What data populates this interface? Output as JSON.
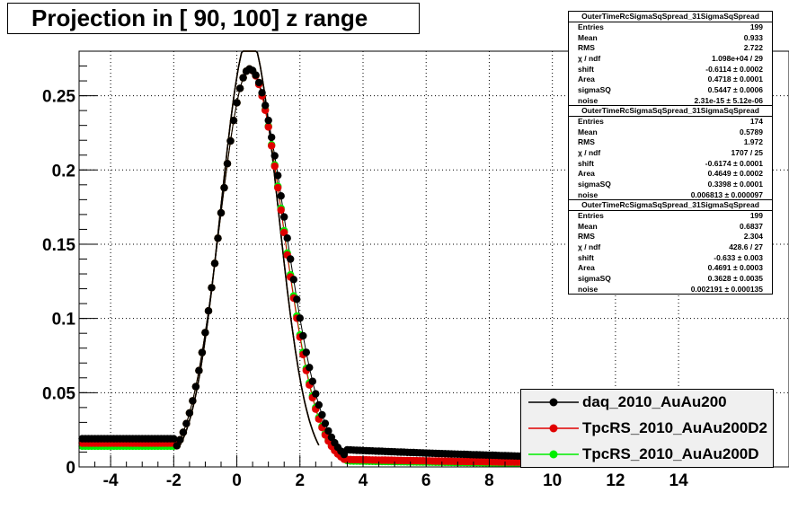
{
  "title": "Projection in [  90, 100] z range",
  "chart_data": {
    "type": "scatter",
    "xlim": [
      -5,
      17.5
    ],
    "ylim": [
      0,
      0.28
    ],
    "xticks": [
      "-4",
      "-2",
      "0",
      "2",
      "4",
      "6",
      "8",
      "10",
      "12",
      "14"
    ],
    "xtick_values": [
      -4,
      -2,
      0,
      2,
      4,
      6,
      8,
      10,
      12,
      14
    ],
    "yticks": [
      "0",
      "0.05",
      "0.1",
      "0.15",
      "0.2",
      "0.25"
    ],
    "ytick_values": [
      0,
      0.05,
      0.1,
      0.15,
      0.2,
      0.25
    ],
    "grid": true,
    "legend_position": "bottom-right",
    "series": [
      {
        "name": "daq_2010_AuAu200",
        "color": "#000000",
        "shift": -0.6114,
        "area": 0.4718,
        "sigmaSQ": 0.5447,
        "noise": 2.31e-15,
        "tail": 0.0115,
        "low": 0.019
      },
      {
        "name": "TpcRS_2010_AuAu200D2",
        "color": "#e00000",
        "shift": -0.6174,
        "area": 0.4649,
        "sigmaSQ": 0.3398,
        "noise": 0.006813,
        "tail": 0.005,
        "low": 0.016
      },
      {
        "name": "TpcRS_2010_AuAu200D",
        "color": "#00ee00",
        "shift": -0.633,
        "area": 0.4691,
        "sigmaSQ": 0.3628,
        "noise": 0.002191,
        "tail": 0.004,
        "low": 0.014
      }
    ]
  },
  "stats": [
    {
      "title": "OuterTimeRcSigmaSqSpread_31SigmaSqSpread",
      "rows": [
        [
          "Entries",
          "199"
        ],
        [
          "Mean",
          "0.933"
        ],
        [
          "RMS",
          "2.722"
        ],
        [
          "χ  / ndf",
          "1.098e+04 / 29"
        ],
        [
          "shift",
          "-0.6114 ± 0.0002"
        ],
        [
          "Area",
          "0.4718 ± 0.0001"
        ],
        [
          "sigmaSQ",
          "0.5447 ± 0.0006"
        ],
        [
          "noise",
          "2.31e-15 ± 5.12e-06"
        ]
      ]
    },
    {
      "title": "OuterTimeRcSigmaSqSpread_31SigmaSqSpread",
      "rows": [
        [
          "Entries",
          "174"
        ],
        [
          "Mean",
          "0.5789"
        ],
        [
          "RMS",
          "1.972"
        ],
        [
          "χ  / ndf",
          "1707 / 25"
        ],
        [
          "shift",
          "-0.6174 ± 0.0001"
        ],
        [
          "Area",
          "0.4649 ± 0.0002"
        ],
        [
          "sigmaSQ",
          "0.3398 ± 0.0001"
        ],
        [
          "noise",
          "0.006813 ± 0.000097"
        ]
      ]
    },
    {
      "title": "OuterTimeRcSigmaSqSpread_31SigmaSqSpread",
      "rows": [
        [
          "Entries",
          "199"
        ],
        [
          "Mean",
          "0.6837"
        ],
        [
          "RMS",
          "2.304"
        ],
        [
          "χ  / ndf",
          "428.6 / 27"
        ],
        [
          "shift",
          "-0.633 ± 0.003"
        ],
        [
          "Area",
          "0.4691 ± 0.0003"
        ],
        [
          "sigmaSQ",
          "0.3628 ± 0.0035"
        ],
        [
          "noise",
          "0.002191 ± 0.000135"
        ]
      ]
    }
  ],
  "legend": [
    {
      "label": "daq_2010_AuAu200",
      "color": "#000000"
    },
    {
      "label": "TpcRS_2010_AuAu200D2",
      "color": "#e00000"
    },
    {
      "label": "TpcRS_2010_AuAu200D",
      "color": "#00ee00"
    }
  ]
}
